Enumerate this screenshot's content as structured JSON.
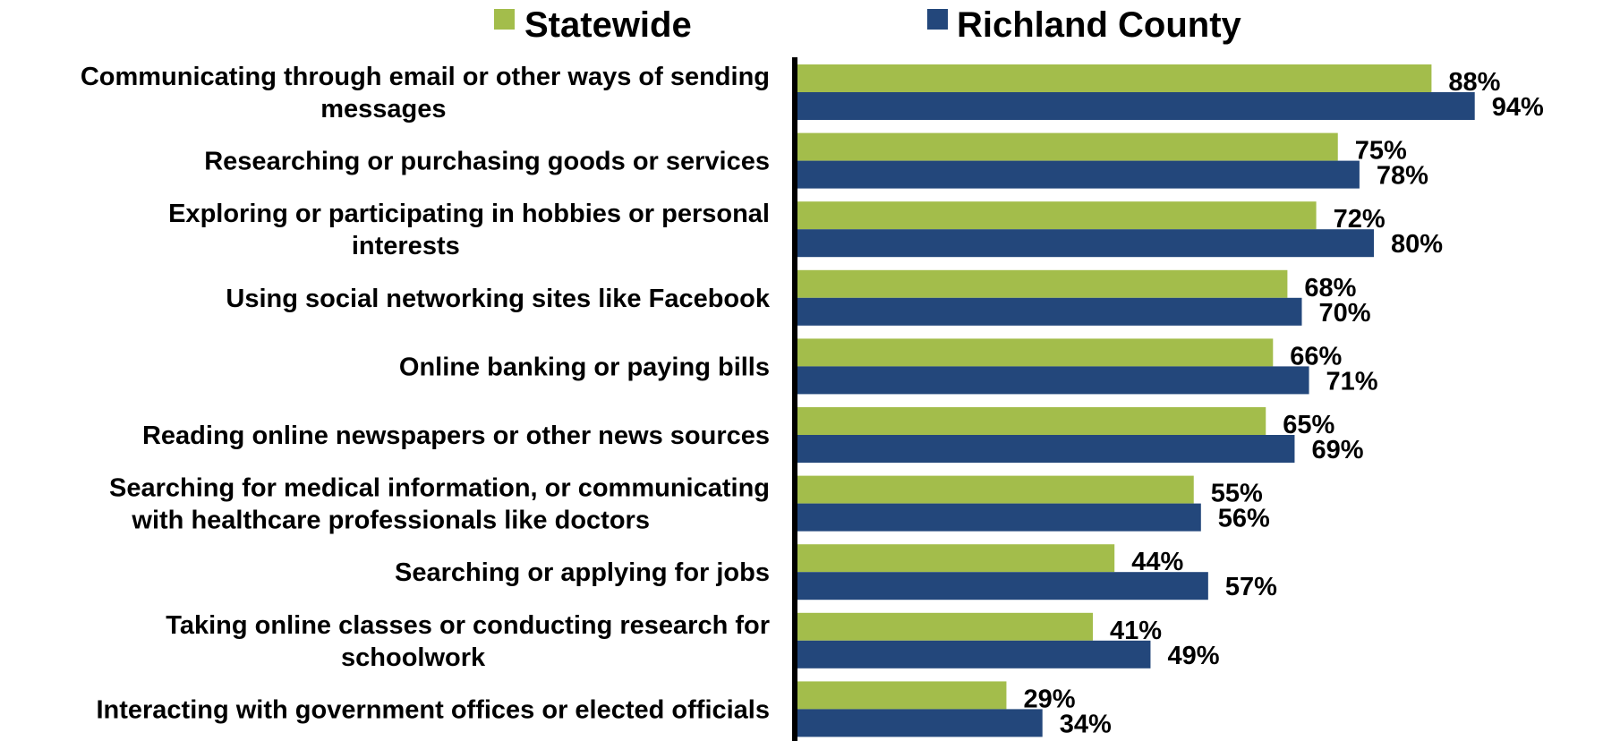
{
  "chart_data": {
    "type": "bar",
    "orientation": "horizontal",
    "title": "",
    "xlabel": "",
    "ylabel": "",
    "xlim": [
      0,
      100
    ],
    "grid": false,
    "legend_position": "top",
    "value_suffix": "%",
    "categories": [
      "Communicating through email or other ways of sending messages",
      "Researching or purchasing goods or services",
      "Exploring or participating in hobbies or personal interests",
      "Using social networking sites like Facebook",
      "Online banking or paying bills",
      "Reading online newspapers or other news sources",
      "Searching for medical information, or communicating with healthcare professionals like doctors",
      "Searching or applying for jobs",
      "Taking online classes or conducting research for schoolwork",
      "Interacting with government offices or elected officials"
    ],
    "category_label_lines": [
      [
        "Communicating through email or other ways of sending",
        "messages"
      ],
      [
        "Researching or purchasing goods or services"
      ],
      [
        "Exploring or participating in hobbies or personal",
        "interests"
      ],
      [
        "Using social networking sites like Facebook"
      ],
      [
        "Online banking or paying bills"
      ],
      [
        "Reading online newspapers or other news sources"
      ],
      [
        "Searching for medical information, or communicating",
        "with healthcare professionals like doctors"
      ],
      [
        "Searching or applying for jobs"
      ],
      [
        "Taking online classes or conducting research for",
        "schoolwork"
      ],
      [
        "Interacting with government offices or elected officials"
      ]
    ],
    "series": [
      {
        "name": "Statewide",
        "color": "#a3bd4b",
        "values": [
          88,
          75,
          72,
          68,
          66,
          65,
          55,
          44,
          41,
          29
        ]
      },
      {
        "name": "Richland County",
        "color": "#23477b",
        "values": [
          94,
          78,
          80,
          70,
          71,
          69,
          56,
          57,
          49,
          34
        ]
      }
    ]
  }
}
